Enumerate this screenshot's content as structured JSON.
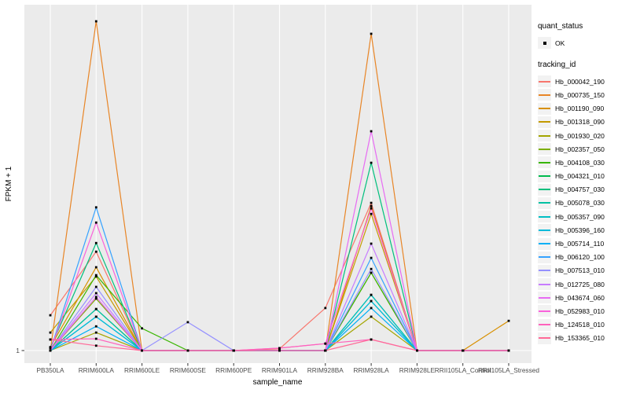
{
  "figure": {
    "xlabel": "sample_name",
    "ylabel": "FPKM + 1",
    "ytick_label": "1"
  },
  "legend": {
    "quant_status_title": "quant_status",
    "quant_status_items": [
      {
        "label": "OK"
      }
    ],
    "tracking_id_title": "tracking_id"
  },
  "colors": {
    "panel_bg": "#EBEBEB",
    "grid": "#FFFFFF",
    "legend_key_bg": "#F2F2F2",
    "point": "#000000",
    "tick_text": "#4D4D4D",
    "axis_title_text": "#000000"
  },
  "chart_data": {
    "type": "line",
    "title": "",
    "xlabel": "sample_name",
    "ylabel": "FPKM + 1",
    "legend_position": "right",
    "grid": "white major gridlines on gray panel; vertical line per category; horizontal baseline at y tick 1",
    "point_marker": "small black square (quant_status = OK) at every sample for every series",
    "yticks": [
      {
        "label": "1",
        "value": 0
      }
    ],
    "value_scale": "relative intensity above baseline FPKM+1=1; 100 = top of panel",
    "categories": [
      "PB350LA",
      "RRIM600LA",
      "RRIM600LE",
      "RRIM600SE",
      "RRIM600PE",
      "RRIM901LA",
      "RRIM928BA",
      "RRIM928LA",
      "RRIM928LE",
      "RRII105LA_Control",
      "RRII105LA_Stressed"
    ],
    "series": [
      {
        "name": "Hb_000042_190",
        "color": "#F8766D",
        "values": [
          10.2,
          28.6,
          0,
          0,
          0,
          0.5,
          12.3,
          42.7,
          0,
          0,
          0
        ]
      },
      {
        "name": "Hb_000735_150",
        "color": "#E88526",
        "values": [
          0,
          95.2,
          0,
          0,
          0,
          0,
          0,
          91.6,
          0,
          0,
          0
        ]
      },
      {
        "name": "Hb_001190_090",
        "color": "#D89000",
        "values": [
          1.0,
          24.1,
          0,
          0,
          0,
          0,
          0,
          41.8,
          0,
          0,
          8.6
        ]
      },
      {
        "name": "Hb_001318_090",
        "color": "#C49A00",
        "values": [
          5.2,
          21.4,
          0,
          0,
          0,
          0,
          0,
          39.5,
          0,
          0,
          0
        ]
      },
      {
        "name": "Hb_001930_020",
        "color": "#A3A500",
        "values": [
          0,
          5.2,
          0,
          0,
          0,
          0,
          0,
          9.8,
          0,
          0,
          0
        ]
      },
      {
        "name": "Hb_002357_050",
        "color": "#7CAE00",
        "values": [
          0,
          15.0,
          0,
          0,
          0,
          0,
          0,
          22.5,
          0,
          0,
          0
        ]
      },
      {
        "name": "Hb_004108_030",
        "color": "#39B600",
        "values": [
          0,
          21.8,
          6.4,
          0,
          0,
          0,
          0,
          22.5,
          0,
          0,
          0
        ]
      },
      {
        "name": "Hb_004321_010",
        "color": "#00BB4E",
        "values": [
          0,
          12.0,
          0,
          0,
          0,
          0,
          0,
          16.1,
          0,
          0,
          0
        ]
      },
      {
        "name": "Hb_004757_030",
        "color": "#00BF7D",
        "values": [
          0.7,
          31.1,
          0,
          0,
          0,
          0,
          0,
          54.3,
          0,
          0,
          0
        ]
      },
      {
        "name": "Hb_005078_030",
        "color": "#00C1A3",
        "values": [
          0,
          12.0,
          0,
          0,
          0,
          0,
          0,
          14.3,
          0,
          0,
          0
        ]
      },
      {
        "name": "Hb_005357_090",
        "color": "#00BFC4",
        "values": [
          0,
          9.8,
          0,
          0,
          0,
          0,
          0,
          16.1,
          0,
          0,
          0
        ]
      },
      {
        "name": "Hb_005396_160",
        "color": "#00BBDA",
        "values": [
          0,
          9.8,
          0,
          0,
          0,
          0,
          0,
          14.3,
          0,
          0,
          0
        ]
      },
      {
        "name": "Hb_005714_110",
        "color": "#00B0F6",
        "values": [
          0,
          7.0,
          0,
          0,
          0,
          0,
          0,
          12.3,
          0,
          0,
          0
        ]
      },
      {
        "name": "Hb_006120_100",
        "color": "#35A2FF",
        "values": [
          0,
          41.4,
          0,
          0,
          0,
          0,
          0,
          26.8,
          0,
          0,
          0
        ]
      },
      {
        "name": "Hb_007513_010",
        "color": "#9590FF",
        "values": [
          0,
          18.4,
          0,
          8.2,
          0,
          0,
          0,
          23.6,
          0,
          0,
          0
        ]
      },
      {
        "name": "Hb_012725_080",
        "color": "#C77CFF",
        "values": [
          0,
          16.6,
          0,
          0,
          0,
          0,
          0,
          30.9,
          0,
          0,
          0
        ]
      },
      {
        "name": "Hb_043674_060",
        "color": "#E76BF3",
        "values": [
          0,
          15.5,
          0,
          0,
          0,
          0,
          0,
          63.4,
          0,
          0,
          0
        ]
      },
      {
        "name": "Hb_052983_010",
        "color": "#FA62DB",
        "values": [
          0,
          37.0,
          0,
          0,
          0,
          0.7,
          2.0,
          41.1,
          0,
          0,
          0
        ]
      },
      {
        "name": "Hb_124518_010",
        "color": "#FF62BC",
        "values": [
          3.2,
          3.4,
          0,
          0,
          0,
          0.7,
          2.0,
          3.2,
          0,
          0,
          0
        ]
      },
      {
        "name": "Hb_153365_010",
        "color": "#FF6A98",
        "values": [
          3.2,
          1.4,
          0,
          0,
          0,
          0,
          0,
          3.2,
          0,
          0,
          0
        ]
      }
    ]
  }
}
